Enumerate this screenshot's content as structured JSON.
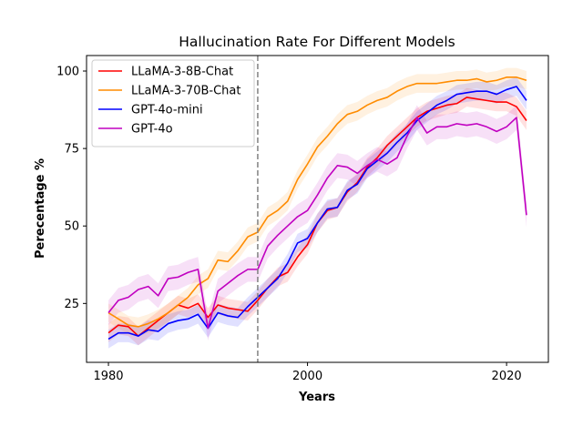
{
  "chart_data": {
    "type": "line",
    "title": "Hallucination Rate For Different Models",
    "xlabel": "Years",
    "ylabel": "Perecentage %",
    "xlim": [
      1977.8,
      2024.2
    ],
    "ylim": [
      6,
      105
    ],
    "xticks": [
      1980,
      2000,
      2020
    ],
    "yticks": [
      25,
      50,
      75,
      100
    ],
    "grid": false,
    "legend_position": "top-left",
    "vline": {
      "x": 1995,
      "style": "dashed",
      "color": "#808080"
    },
    "x": [
      1980,
      1981,
      1982,
      1983,
      1984,
      1985,
      1986,
      1987,
      1988,
      1989,
      1990,
      1991,
      1992,
      1993,
      1994,
      1995,
      1996,
      1997,
      1998,
      1999,
      2000,
      2001,
      2002,
      2003,
      2004,
      2005,
      2006,
      2007,
      2008,
      2009,
      2010,
      2011,
      2012,
      2013,
      2014,
      2015,
      2016,
      2017,
      2018,
      2019,
      2020,
      2021,
      2022
    ],
    "series": [
      {
        "name": "LLaMA-3-8B-Chat",
        "color": "#ff0000",
        "band": 3,
        "values": [
          15.5,
          18,
          17.5,
          14.5,
          17,
          19.5,
          22,
          24.5,
          23.5,
          25,
          20.5,
          24.5,
          23.5,
          23,
          22.5,
          26,
          30,
          33.5,
          35,
          40,
          44,
          51,
          55,
          56,
          61,
          64,
          69,
          72,
          76,
          79,
          82,
          85,
          87,
          88,
          89,
          89.5,
          91.5,
          91,
          90.5,
          90,
          90,
          88.5,
          84
        ]
      },
      {
        "name": "LLaMA-3-70B-Chat",
        "color": "#ff8c00",
        "band": 3,
        "values": [
          22,
          20,
          18,
          17.5,
          18.5,
          20,
          22,
          24.5,
          27,
          31,
          33,
          39,
          38.5,
          42,
          46.5,
          48,
          53,
          55,
          58,
          65,
          70,
          75.5,
          79,
          83,
          86,
          87,
          89,
          90.5,
          91.5,
          93.5,
          95,
          96,
          96,
          96,
          96.5,
          97,
          97,
          97.5,
          96.5,
          97,
          98,
          98,
          97
        ]
      },
      {
        "name": "GPT-4o-mini",
        "color": "#0000ff",
        "band": 3,
        "values": [
          13.5,
          15.5,
          15.5,
          14.5,
          16.5,
          16,
          18.5,
          19.5,
          20,
          21.5,
          17,
          22,
          21,
          20.5,
          24,
          27,
          30,
          33,
          38,
          44.5,
          46,
          51,
          55.5,
          56,
          61.5,
          63.5,
          68.5,
          71,
          73.5,
          77,
          80,
          84,
          86.5,
          89,
          90.5,
          92.5,
          93,
          93.5,
          93.5,
          92.5,
          94,
          95,
          90.5
        ]
      },
      {
        "name": "GPT-4o",
        "color": "#c000c0",
        "band": 4,
        "values": [
          22,
          26,
          27,
          29.5,
          30.5,
          27.5,
          33,
          33.5,
          35,
          36,
          17,
          29,
          31.5,
          34,
          36,
          36,
          43.5,
          47,
          50,
          53,
          55,
          60,
          65.5,
          69.5,
          69,
          67,
          69.5,
          71.5,
          70,
          72,
          79,
          85,
          80,
          82,
          82,
          83,
          82.5,
          83,
          82,
          80.5,
          82,
          85,
          53.5
        ]
      }
    ]
  }
}
